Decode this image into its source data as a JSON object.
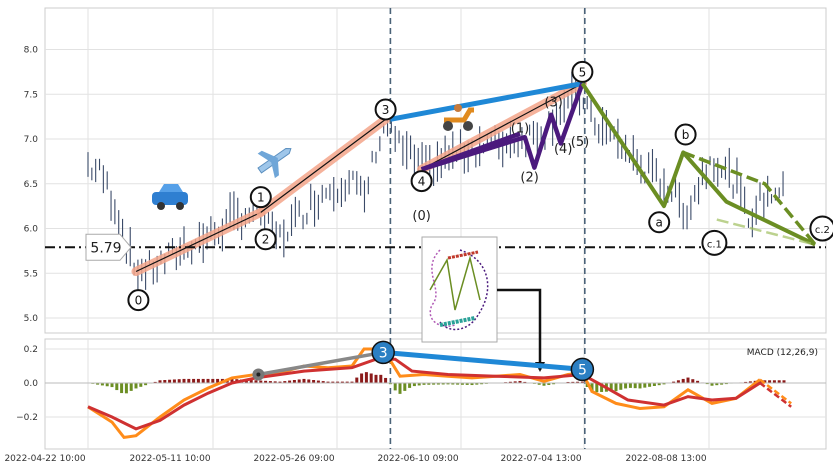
{
  "chart_data": [
    {
      "type": "candlestick",
      "yticks": [
        "5.0",
        "5.5",
        "6.0",
        "6.5",
        "7.0",
        "7.5",
        "8.0"
      ],
      "ylim": [
        4.85,
        8.45
      ],
      "x_tick_labels": [
        "2022-04-22 10:00",
        "2022-05-11 10:00",
        "2022-05-26 09:00",
        "2022-06-10 09:00",
        "2022-07-04 13:00",
        "2022-08-08 13:00"
      ],
      "price_path": [
        {
          "x": 0.0,
          "y": 6.7
        },
        {
          "x": 0.6,
          "y": 6.6
        },
        {
          "x": 1.2,
          "y": 6.2
        },
        {
          "x": 1.6,
          "y": 5.8
        },
        {
          "x": 2.0,
          "y": 5.5
        },
        {
          "x": 3.0,
          "y": 5.6
        },
        {
          "x": 4.0,
          "y": 5.8
        },
        {
          "x": 5.0,
          "y": 5.9
        },
        {
          "x": 6.0,
          "y": 6.1
        },
        {
          "x": 7.0,
          "y": 6.2
        },
        {
          "x": 7.5,
          "y": 6.0
        },
        {
          "x": 8.0,
          "y": 5.9
        },
        {
          "x": 9.0,
          "y": 6.2
        },
        {
          "x": 10.0,
          "y": 6.45
        },
        {
          "x": 11.0,
          "y": 6.55
        },
        {
          "x": 11.5,
          "y": 6.3
        },
        {
          "x": 12.0,
          "y": 6.9
        },
        {
          "x": 12.5,
          "y": 7.2
        },
        {
          "x": 13.0,
          "y": 6.9
        },
        {
          "x": 14.0,
          "y": 6.65
        },
        {
          "x": 15.0,
          "y": 6.8
        },
        {
          "x": 16.0,
          "y": 6.9
        },
        {
          "x": 17.0,
          "y": 6.95
        },
        {
          "x": 18.0,
          "y": 7.0
        },
        {
          "x": 19.0,
          "y": 7.1
        },
        {
          "x": 19.5,
          "y": 7.3
        },
        {
          "x": 20.0,
          "y": 7.4
        },
        {
          "x": 20.6,
          "y": 7.5
        },
        {
          "x": 21.0,
          "y": 7.2
        },
        {
          "x": 22.0,
          "y": 7.0
        },
        {
          "x": 23.0,
          "y": 6.7
        },
        {
          "x": 24.0,
          "y": 6.5
        },
        {
          "x": 24.6,
          "y": 6.3
        },
        {
          "x": 25.0,
          "y": 6.2
        },
        {
          "x": 25.6,
          "y": 6.6
        },
        {
          "x": 26.0,
          "y": 6.8
        },
        {
          "x": 27.0,
          "y": 6.5
        },
        {
          "x": 27.5,
          "y": 6.1
        },
        {
          "x": 28.0,
          "y": 6.3
        },
        {
          "x": 29.0,
          "y": 6.5
        }
      ],
      "elliptic_segments": [
        {
          "label": "0-1",
          "x": [
            2.0,
            7.2
          ],
          "y": [
            5.52,
            6.18
          ],
          "color": "#f3a58a"
        },
        {
          "label": "1-3",
          "x": [
            7.2,
            12.4
          ],
          "y": [
            6.18,
            7.22
          ],
          "color": "#f3a58a"
        },
        {
          "label": "4-5",
          "x": [
            13.9,
            20.6
          ],
          "y": [
            6.66,
            7.62
          ],
          "color": "#f3a58a"
        }
      ],
      "wave_labels": [
        {
          "text": "0",
          "x": 2.1,
          "y": 5.2,
          "circled": true
        },
        {
          "text": "1",
          "x": 7.2,
          "y": 6.35,
          "circled": true
        },
        {
          "text": "2",
          "x": 7.4,
          "y": 5.88,
          "circled": true
        },
        {
          "text": "3",
          "x": 12.4,
          "y": 7.33,
          "circled": true
        },
        {
          "text": "4",
          "x": 13.9,
          "y": 6.53,
          "circled": true
        },
        {
          "text": "5",
          "x": 20.6,
          "y": 7.75,
          "circled": true
        },
        {
          "text": "(0)",
          "x": 13.9,
          "y": 6.15,
          "circled": false
        },
        {
          "text": "(1)",
          "x": 18.0,
          "y": 7.13,
          "circled": false
        },
        {
          "text": "(2)",
          "x": 18.4,
          "y": 6.58,
          "circled": false
        },
        {
          "text": "(3)",
          "x": 19.4,
          "y": 7.42,
          "circled": false
        },
        {
          "text": "(4)",
          "x": 19.8,
          "y": 6.9,
          "circled": false
        },
        {
          "text": "(5)",
          "x": 20.5,
          "y": 6.98,
          "circled": false
        },
        {
          "text": "a",
          "x": 23.8,
          "y": 6.07,
          "circled": true
        },
        {
          "text": "b",
          "x": 24.9,
          "y": 7.05,
          "circled": true
        },
        {
          "text": "c.1",
          "x": 26.1,
          "y": 5.84,
          "circled": true
        },
        {
          "text": "c.2",
          "x": 30.6,
          "y": 6.0,
          "circled": true
        }
      ],
      "horizontal_level": {
        "value": 5.79,
        "label": "5.79",
        "style": "dash-dot"
      },
      "vertical_markers_x": [
        12.6,
        20.7
      ],
      "blue_trendline": {
        "x": [
          12.6,
          20.6
        ],
        "y": [
          7.22,
          7.62
        ]
      },
      "purple_waves": [
        {
          "x": [
            13.9,
            18.2,
            18.6,
            19.3,
            19.7,
            20.6
          ],
          "y": [
            6.66,
            7.02,
            6.68,
            7.27,
            6.95,
            7.62
          ]
        },
        {
          "x": [
            13.9,
            18.0
          ],
          "y": [
            6.66,
            7.06
          ]
        }
      ],
      "green_projection": {
        "x": [
          20.6,
          24.0,
          24.8,
          26.6,
          30.3
        ],
        "y": [
          7.62,
          6.25,
          6.85,
          6.3,
          5.82
        ]
      },
      "green_dashed": [
        {
          "x": [
            24.8,
            28.2,
            30.3
          ],
          "y": [
            6.85,
            6.5,
            5.82
          ]
        },
        {
          "x": [
            26.2,
            30.3
          ],
          "y": [
            6.1,
            5.82
          ]
        }
      ]
    },
    {
      "type": "macd",
      "label": "MACD (12,26,9)",
      "yticks": [
        "−0.2",
        "0.0",
        "0.2"
      ],
      "ylim": [
        -0.36,
        0.26
      ],
      "macd_line": [
        {
          "x": 0.0,
          "y": -0.14
        },
        {
          "x": 1.0,
          "y": -0.23
        },
        {
          "x": 1.5,
          "y": -0.32
        },
        {
          "x": 2.0,
          "y": -0.31
        },
        {
          "x": 3.0,
          "y": -0.2
        },
        {
          "x": 4.0,
          "y": -0.1
        },
        {
          "x": 5.0,
          "y": -0.03
        },
        {
          "x": 6.0,
          "y": 0.03
        },
        {
          "x": 7.0,
          "y": 0.05
        },
        {
          "x": 8.0,
          "y": 0.06
        },
        {
          "x": 9.0,
          "y": 0.1
        },
        {
          "x": 10.0,
          "y": 0.09
        },
        {
          "x": 11.0,
          "y": 0.1
        },
        {
          "x": 11.5,
          "y": 0.2
        },
        {
          "x": 12.3,
          "y": 0.2
        },
        {
          "x": 13.0,
          "y": 0.04
        },
        {
          "x": 14.0,
          "y": 0.05
        },
        {
          "x": 15.0,
          "y": 0.04
        },
        {
          "x": 16.0,
          "y": 0.03
        },
        {
          "x": 17.0,
          "y": 0.04
        },
        {
          "x": 18.0,
          "y": 0.05
        },
        {
          "x": 19.0,
          "y": 0.01
        },
        {
          "x": 20.0,
          "y": 0.05
        },
        {
          "x": 20.6,
          "y": 0.06
        },
        {
          "x": 21.0,
          "y": -0.05
        },
        {
          "x": 22.0,
          "y": -0.12
        },
        {
          "x": 23.0,
          "y": -0.15
        },
        {
          "x": 24.0,
          "y": -0.14
        },
        {
          "x": 25.0,
          "y": -0.04
        },
        {
          "x": 26.0,
          "y": -0.12
        },
        {
          "x": 27.0,
          "y": -0.09
        },
        {
          "x": 28.0,
          "y": 0.02
        }
      ],
      "signal_line": [
        {
          "x": 0.0,
          "y": -0.14
        },
        {
          "x": 1.0,
          "y": -0.2
        },
        {
          "x": 2.0,
          "y": -0.27
        },
        {
          "x": 3.0,
          "y": -0.22
        },
        {
          "x": 4.0,
          "y": -0.13
        },
        {
          "x": 5.0,
          "y": -0.06
        },
        {
          "x": 6.0,
          "y": 0.0
        },
        {
          "x": 7.0,
          "y": 0.03
        },
        {
          "x": 8.0,
          "y": 0.05
        },
        {
          "x": 9.0,
          "y": 0.07
        },
        {
          "x": 10.0,
          "y": 0.08
        },
        {
          "x": 11.0,
          "y": 0.09
        },
        {
          "x": 12.0,
          "y": 0.14
        },
        {
          "x": 12.8,
          "y": 0.14
        },
        {
          "x": 13.5,
          "y": 0.07
        },
        {
          "x": 15.0,
          "y": 0.05
        },
        {
          "x": 17.0,
          "y": 0.04
        },
        {
          "x": 19.0,
          "y": 0.03
        },
        {
          "x": 20.6,
          "y": 0.05
        },
        {
          "x": 21.5,
          "y": -0.02
        },
        {
          "x": 22.5,
          "y": -0.1
        },
        {
          "x": 24.0,
          "y": -0.13
        },
        {
          "x": 25.0,
          "y": -0.08
        },
        {
          "x": 26.0,
          "y": -0.1
        },
        {
          "x": 27.0,
          "y": -0.09
        },
        {
          "x": 28.0,
          "y": 0.0
        }
      ],
      "points": [
        {
          "text": "",
          "x": 7.1,
          "y": 0.05,
          "color": "#777777"
        },
        {
          "text": "3",
          "x": 12.3,
          "y": 0.18,
          "color": "#2b7fc3"
        },
        {
          "text": "5",
          "x": 20.6,
          "y": 0.08,
          "color": "#2b7fc3"
        }
      ]
    }
  ],
  "colors": {
    "salmon": "#f3a58a",
    "blue": "#1f88d6",
    "purple": "#4b1a7d",
    "green": "#6b8e23",
    "lightgreen": "#9fbf60",
    "macd_orange": "#ff8c1a",
    "macd_red": "#cf3131",
    "hist_red": "#8b1a1a",
    "hist_green": "#6b8e23",
    "vline": "#4a6278"
  },
  "icons": [
    "car-icon",
    "airplane-icon",
    "scooter-icon",
    "pattern-thumbnail-icon"
  ]
}
